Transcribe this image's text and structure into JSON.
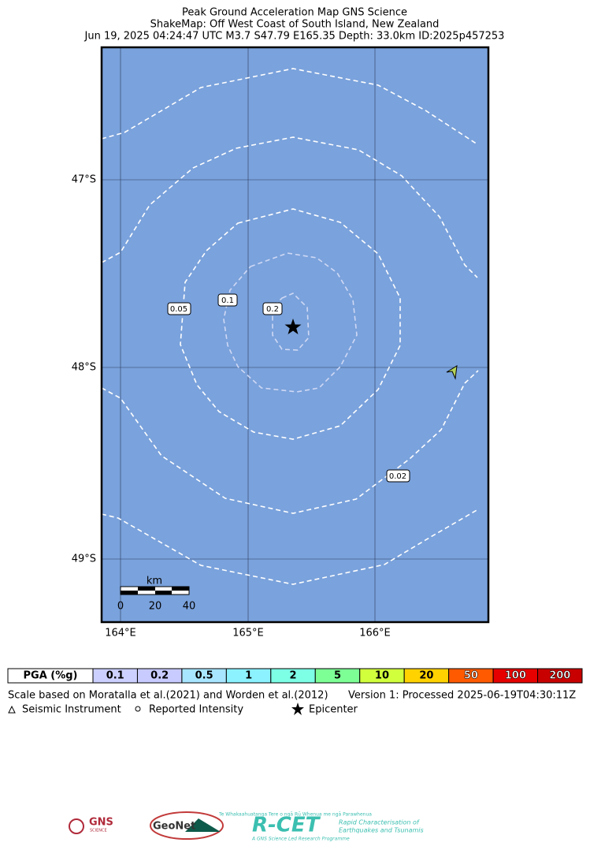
{
  "title": [
    "Peak Ground Acceleration Map GNS Science",
    "ShakeMap: Off West Coast of South Island, New Zealand",
    "Jun 19, 2025 04:24:47 UTC M3.7 S47.79 E165.35 Depth: 33.0km ID:2025p457253"
  ],
  "map": {
    "lat_labels": [
      "47°S",
      "48°S",
      "49°S"
    ],
    "lon_labels": [
      "164°E",
      "165°E",
      "166°E"
    ],
    "contour_labels": [
      "0.05",
      "0.1",
      "0.2",
      "0.02"
    ],
    "scale_bar": {
      "unit": "km",
      "labels": [
        "0",
        "20",
        "40"
      ]
    }
  },
  "legend": {
    "label": "PGA (%g)",
    "levels": [
      "0.1",
      "0.2",
      "0.5",
      "1",
      "2",
      "5",
      "10",
      "20",
      "50",
      "100",
      "200"
    ],
    "colors": [
      "#ccd0ff",
      "#c8cbff",
      "#a8e6ff",
      "#8cf2ff",
      "#7dffe6",
      "#7dff96",
      "#d2ff3c",
      "#ffd200",
      "#ff5a00",
      "#e60000",
      "#c80000"
    ]
  },
  "notes": {
    "scale": "Scale based on Moratalla et al.(2021) and Worden et al.(2012)",
    "version": "Version 1: Processed 2025-06-19T04:30:11Z"
  },
  "symbols": [
    "Seismic Instrument",
    "Reported Intensity",
    "Epicenter"
  ],
  "logos": {
    "gns": "GNS",
    "gns_sub": "SCIENCE",
    "geonet": "GeoNet",
    "rcet": "R-CET",
    "rcet_top": "Te Whakaahuatanga Tere o ngā Rū Whenua me ngā Parawhenua",
    "rcet_line1": "Rapid Characterisation of",
    "rcet_line2": "Earthquakes and Tsunamis",
    "rcet_bottom": "A GNS Science Led Research Programme"
  }
}
